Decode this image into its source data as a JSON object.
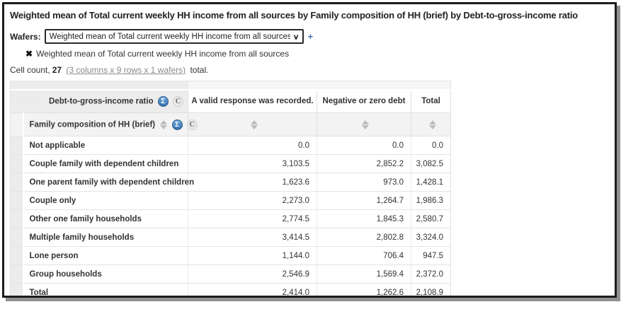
{
  "window": {
    "title": "Weighted mean of Total current weekly HH income from all sources by Family composition of HH (brief) by Debt-to-gross-income ratio"
  },
  "wafers": {
    "label": "Wafers:",
    "selected_option": "Weighted mean of Total current weekly HH income from all sources +",
    "add_button": "+",
    "chip_label": "Weighted mean of Total current weekly HH income from all sources"
  },
  "cell_count": {
    "prefix": "Cell count,",
    "count": "27",
    "link": "(3 columns x 9 rows x 1 wafers)",
    "suffix": "total."
  },
  "icons": {
    "remove": "✖",
    "chevron_down": "∨",
    "sum": "Σ",
    "custom_data": "C"
  },
  "table": {
    "column_dimension_label": "Debt-to-gross-income ratio",
    "row_dimension_label": "Family composition of HH (brief)",
    "columns": [
      "A valid response was recorded.",
      "Negative or zero debt",
      "Total"
    ],
    "rows": [
      {
        "label": "Not applicable",
        "values": [
          "0.0",
          "0.0",
          "0.0"
        ]
      },
      {
        "label": "Couple family with dependent children",
        "values": [
          "3,103.5",
          "2,852.2",
          "3,082.5"
        ]
      },
      {
        "label": "One parent family with dependent children",
        "values": [
          "1,623.6",
          "973.0",
          "1,428.1"
        ]
      },
      {
        "label": "Couple only",
        "values": [
          "2,273.0",
          "1,264.7",
          "1,986.3"
        ]
      },
      {
        "label": "Other one family households",
        "values": [
          "2,774.5",
          "1,845.3",
          "2,580.7"
        ]
      },
      {
        "label": "Multiple family households",
        "values": [
          "3,414.5",
          "2,802.8",
          "3,324.0"
        ]
      },
      {
        "label": "Lone person",
        "values": [
          "1,144.0",
          "706.4",
          "947.5"
        ]
      },
      {
        "label": "Group households",
        "values": [
          "2,546.9",
          "1,569.4",
          "2,372.0"
        ]
      },
      {
        "label": "Total",
        "values": [
          "2,414.0",
          "1,262.6",
          "2,108.9"
        ]
      }
    ]
  },
  "colors": {
    "accent_blue": "#3d74bb",
    "sigma_icon_blue": "#366fae",
    "header_gray": "#ececec",
    "window_border": "#1c1c1c"
  }
}
